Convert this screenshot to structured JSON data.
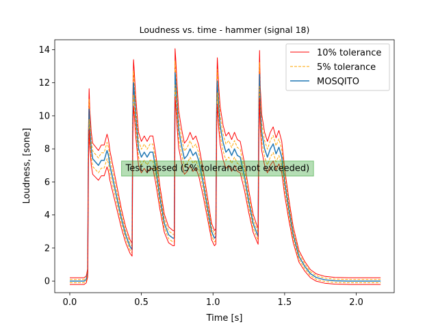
{
  "chart_data": {
    "type": "line",
    "title": "Loudness vs. time - hammer (signal 18)",
    "xlabel": "Time [s]",
    "ylabel": "Loudness, [sone]",
    "xlim": [
      -0.105,
      2.265
    ],
    "ylim": [
      -0.7,
      14.6
    ],
    "xticks": [
      0.0,
      0.5,
      1.0,
      1.5,
      2.0
    ],
    "xtick_labels": [
      "0.0",
      "0.5",
      "1.0",
      "1.5",
      "2.0"
    ],
    "yticks": [
      0,
      2,
      4,
      6,
      8,
      10,
      12,
      14
    ],
    "ytick_labels": [
      "0",
      "2",
      "4",
      "6",
      "8",
      "10",
      "12",
      "14"
    ],
    "grid": false,
    "legend_position": "top-right",
    "annotation": {
      "text": "Test passed (5% tolerance not exceeded)",
      "x": 0.39,
      "y": 6.85,
      "color": "#2ca02c"
    },
    "series": [
      {
        "name": "10% tolerance",
        "color": "#ff0000",
        "style": "solid",
        "width": 1.0,
        "scale": 1.1,
        "offset": 0.2
      },
      {
        "name": "5% tolerance",
        "color": "#ffa500",
        "style": "dashed",
        "width": 1.0,
        "scale": 1.05,
        "offset": 0.1
      },
      {
        "name": "MOSQITO",
        "color": "#1f77b4",
        "style": "solid",
        "width": 1.5,
        "scale": 1.0,
        "offset": 0.0
      },
      {
        "name": "",
        "color": "#ffa500",
        "style": "dashed",
        "width": 1.0,
        "scale": 0.95,
        "offset": -0.1
      },
      {
        "name": "",
        "color": "#ff0000",
        "style": "solid",
        "width": 1.0,
        "scale": 0.9,
        "offset": -0.2
      }
    ],
    "x": [
      0.0,
      0.1,
      0.115,
      0.125,
      0.13,
      0.135,
      0.14,
      0.15,
      0.16,
      0.18,
      0.2,
      0.22,
      0.24,
      0.26,
      0.27,
      0.28,
      0.3,
      0.33,
      0.36,
      0.39,
      0.42,
      0.435,
      0.44,
      0.445,
      0.45,
      0.46,
      0.48,
      0.5,
      0.52,
      0.54,
      0.56,
      0.58,
      0.6,
      0.63,
      0.66,
      0.69,
      0.72,
      0.73,
      0.735,
      0.74,
      0.75,
      0.76,
      0.78,
      0.8,
      0.82,
      0.84,
      0.86,
      0.88,
      0.9,
      0.93,
      0.96,
      0.99,
      1.01,
      1.02,
      1.025,
      1.03,
      1.04,
      1.05,
      1.07,
      1.09,
      1.11,
      1.13,
      1.15,
      1.17,
      1.19,
      1.22,
      1.25,
      1.28,
      1.31,
      1.315,
      1.32,
      1.325,
      1.33,
      1.34,
      1.36,
      1.38,
      1.4,
      1.42,
      1.44,
      1.46,
      1.48,
      1.5,
      1.53,
      1.56,
      1.6,
      1.64,
      1.68,
      1.72,
      1.78,
      1.85,
      1.95,
      2.05,
      2.17
    ],
    "y": [
      0.0,
      0.0,
      0.1,
      0.5,
      8.0,
      10.4,
      9.2,
      8.0,
      7.4,
      7.2,
      7.0,
      7.3,
      7.3,
      7.9,
      7.6,
      7.0,
      6.2,
      5.0,
      3.8,
      2.8,
      2.1,
      1.9,
      10.0,
      12.0,
      11.4,
      10.0,
      8.0,
      7.5,
      7.8,
      7.5,
      7.8,
      7.8,
      6.8,
      5.0,
      3.5,
      2.8,
      2.6,
      2.6,
      12.6,
      12.0,
      10.5,
      9.2,
      8.2,
      7.4,
      7.6,
      8.0,
      7.6,
      7.8,
      7.3,
      6.0,
      4.5,
      3.0,
      2.6,
      2.7,
      10.0,
      12.1,
      10.5,
      9.4,
      8.4,
      7.8,
      8.0,
      7.6,
      8.0,
      7.6,
      7.5,
      6.3,
      4.8,
      3.5,
      2.8,
      2.7,
      10.0,
      12.5,
      10.5,
      9.0,
      8.0,
      7.5,
      8.0,
      8.3,
      7.7,
      8.1,
      7.5,
      6.0,
      4.3,
      2.8,
      1.5,
      0.9,
      0.45,
      0.22,
      0.08,
      0.02,
      0.0,
      0.0,
      0.0
    ]
  }
}
